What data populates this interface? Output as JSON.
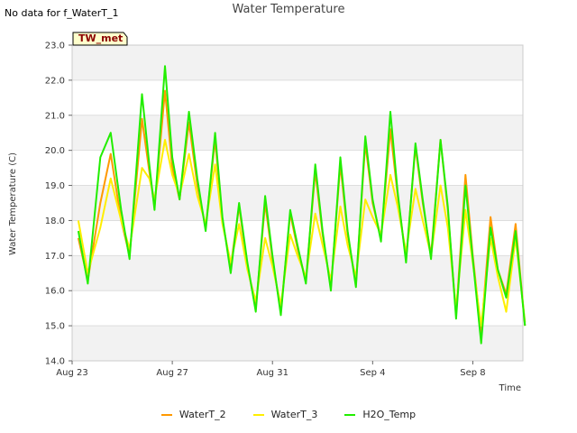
{
  "header": {
    "no_data_note": "No data for f_WaterT_1",
    "title": "Water Temperature"
  },
  "badge": {
    "label": "TW_met"
  },
  "legend": [
    {
      "name": "WaterT_2",
      "color": "#ff9900"
    },
    {
      "name": "WaterT_3",
      "color": "#ffee00"
    },
    {
      "name": "H2O_Temp",
      "color": "#22ee00"
    }
  ],
  "chart_data": {
    "type": "line",
    "title": "Water Temperature",
    "xlabel": "Time",
    "ylabel": "Water Temperature (C)",
    "ylim": [
      14.0,
      23.0
    ],
    "xlim": [
      "2023-08-23",
      "2023-09-10"
    ],
    "yticks": [
      "14.0",
      "15.0",
      "16.0",
      "17.0",
      "18.0",
      "19.0",
      "20.0",
      "21.0",
      "22.0",
      "23.0"
    ],
    "xticks": [
      {
        "label": "Aug 23",
        "date": "2023-08-23"
      },
      {
        "label": "Aug 27",
        "date": "2023-08-27"
      },
      {
        "label": "Aug 31",
        "date": "2023-08-31"
      },
      {
        "label": "Sep 4",
        "date": "2023-09-04"
      },
      {
        "label": "Sep 8",
        "date": "2023-09-08"
      }
    ],
    "grid": true,
    "legend_position": "bottom",
    "series": [
      {
        "name": "WaterT_2",
        "color": "#ff9900",
        "points": [
          [
            "2023-08-23 06:00",
            17.5
          ],
          [
            "2023-08-23 15:00",
            16.3
          ],
          [
            "2023-08-24 03:00",
            18.5
          ],
          [
            "2023-08-24 13:00",
            19.9
          ],
          [
            "2023-08-24 23:00",
            18.0
          ],
          [
            "2023-08-25 07:00",
            17.0
          ],
          [
            "2023-08-25 19:00",
            20.9
          ],
          [
            "2023-08-26 02:00",
            19.4
          ],
          [
            "2023-08-26 07:00",
            18.4
          ],
          [
            "2023-08-26 17:00",
            21.7
          ],
          [
            "2023-08-27 00:00",
            19.5
          ],
          [
            "2023-08-27 07:00",
            18.6
          ],
          [
            "2023-08-27 16:00",
            20.8
          ],
          [
            "2023-08-28 00:00",
            19.0
          ],
          [
            "2023-08-28 08:00",
            17.8
          ],
          [
            "2023-08-28 17:00",
            20.3
          ],
          [
            "2023-08-29 00:00",
            18.0
          ],
          [
            "2023-08-29 08:00",
            16.7
          ],
          [
            "2023-08-29 16:00",
            18.4
          ],
          [
            "2023-08-30 00:00",
            16.7
          ],
          [
            "2023-08-30 08:00",
            15.5
          ],
          [
            "2023-08-30 17:00",
            18.5
          ],
          [
            "2023-08-31 00:00",
            16.9
          ],
          [
            "2023-08-31 08:00",
            15.4
          ],
          [
            "2023-08-31 17:00",
            18.2
          ],
          [
            "2023-09-01 00:00",
            17.2
          ],
          [
            "2023-09-01 08:00",
            16.3
          ],
          [
            "2023-09-01 17:00",
            19.4
          ],
          [
            "2023-09-02 00:00",
            17.6
          ],
          [
            "2023-09-02 08:00",
            16.1
          ],
          [
            "2023-09-02 17:00",
            19.6
          ],
          [
            "2023-09-03 00:00",
            17.6
          ],
          [
            "2023-09-03 08:00",
            16.2
          ],
          [
            "2023-09-03 17:00",
            20.2
          ],
          [
            "2023-09-04 00:00",
            18.5
          ],
          [
            "2023-09-04 08:00",
            17.5
          ],
          [
            "2023-09-04 17:00",
            20.6
          ],
          [
            "2023-09-05 00:00",
            18.7
          ],
          [
            "2023-09-05 08:00",
            16.9
          ],
          [
            "2023-09-05 17:00",
            20.1
          ],
          [
            "2023-09-06 00:00",
            18.5
          ],
          [
            "2023-09-06 08:00",
            17.0
          ],
          [
            "2023-09-06 17:00",
            20.3
          ],
          [
            "2023-09-07 00:00",
            18.3
          ],
          [
            "2023-09-07 08:00",
            15.3
          ],
          [
            "2023-09-07 17:00",
            19.3
          ],
          [
            "2023-09-08 00:00",
            17.0
          ],
          [
            "2023-09-08 08:00",
            14.8
          ],
          [
            "2023-09-08 17:00",
            18.1
          ],
          [
            "2023-09-09 00:00",
            16.6
          ],
          [
            "2023-09-09 08:00",
            15.9
          ],
          [
            "2023-09-09 17:00",
            17.9
          ],
          [
            "2023-09-10 02:00",
            15.0
          ]
        ]
      },
      {
        "name": "WaterT_3",
        "color": "#ffee00",
        "points": [
          [
            "2023-08-23 06:00",
            18.0
          ],
          [
            "2023-08-23 15:00",
            16.5
          ],
          [
            "2023-08-24 03:00",
            17.8
          ],
          [
            "2023-08-24 13:00",
            19.2
          ],
          [
            "2023-08-24 23:00",
            18.0
          ],
          [
            "2023-08-25 07:00",
            17.2
          ],
          [
            "2023-08-25 19:00",
            19.5
          ],
          [
            "2023-08-26 02:00",
            19.2
          ],
          [
            "2023-08-26 07:00",
            18.6
          ],
          [
            "2023-08-26 17:00",
            20.3
          ],
          [
            "2023-08-27 00:00",
            19.3
          ],
          [
            "2023-08-27 07:00",
            18.7
          ],
          [
            "2023-08-27 16:00",
            19.9
          ],
          [
            "2023-08-28 00:00",
            18.7
          ],
          [
            "2023-08-28 08:00",
            17.9
          ],
          [
            "2023-08-28 17:00",
            19.6
          ],
          [
            "2023-08-29 00:00",
            17.9
          ],
          [
            "2023-08-29 08:00",
            16.8
          ],
          [
            "2023-08-29 16:00",
            17.9
          ],
          [
            "2023-08-30 00:00",
            16.6
          ],
          [
            "2023-08-30 08:00",
            15.7
          ],
          [
            "2023-08-30 17:00",
            17.5
          ],
          [
            "2023-08-31 00:00",
            16.7
          ],
          [
            "2023-08-31 08:00",
            15.6
          ],
          [
            "2023-08-31 17:00",
            17.6
          ],
          [
            "2023-09-01 00:00",
            17.0
          ],
          [
            "2023-09-01 08:00",
            16.4
          ],
          [
            "2023-09-01 17:00",
            18.2
          ],
          [
            "2023-09-02 00:00",
            17.3
          ],
          [
            "2023-09-02 08:00",
            16.3
          ],
          [
            "2023-09-02 17:00",
            18.4
          ],
          [
            "2023-09-03 00:00",
            17.3
          ],
          [
            "2023-09-03 08:00",
            16.4
          ],
          [
            "2023-09-03 17:00",
            18.6
          ],
          [
            "2023-09-04 00:00",
            18.1
          ],
          [
            "2023-09-04 08:00",
            17.6
          ],
          [
            "2023-09-04 17:00",
            19.3
          ],
          [
            "2023-09-05 00:00",
            18.4
          ],
          [
            "2023-09-05 08:00",
            17.1
          ],
          [
            "2023-09-05 17:00",
            18.9
          ],
          [
            "2023-09-06 00:00",
            18.0
          ],
          [
            "2023-09-06 08:00",
            17.0
          ],
          [
            "2023-09-06 17:00",
            19.0
          ],
          [
            "2023-09-07 00:00",
            17.8
          ],
          [
            "2023-09-07 08:00",
            15.5
          ],
          [
            "2023-09-07 17:00",
            18.3
          ],
          [
            "2023-09-08 00:00",
            16.8
          ],
          [
            "2023-09-08 08:00",
            15.0
          ],
          [
            "2023-09-08 17:00",
            17.5
          ],
          [
            "2023-09-09 00:00",
            16.4
          ],
          [
            "2023-09-09 08:00",
            15.4
          ],
          [
            "2023-09-09 17:00",
            17.5
          ],
          [
            "2023-09-10 02:00",
            15.1
          ]
        ]
      },
      {
        "name": "H2O_Temp",
        "color": "#22ee00",
        "points": [
          [
            "2023-08-23 06:00",
            17.7
          ],
          [
            "2023-08-23 15:00",
            16.2
          ],
          [
            "2023-08-24 03:00",
            19.8
          ],
          [
            "2023-08-24 13:00",
            20.5
          ],
          [
            "2023-08-24 23:00",
            18.3
          ],
          [
            "2023-08-25 07:00",
            16.9
          ],
          [
            "2023-08-25 19:00",
            21.6
          ],
          [
            "2023-08-26 02:00",
            19.6
          ],
          [
            "2023-08-26 07:00",
            18.3
          ],
          [
            "2023-08-26 17:00",
            22.4
          ],
          [
            "2023-08-27 00:00",
            19.8
          ],
          [
            "2023-08-27 07:00",
            18.6
          ],
          [
            "2023-08-27 16:00",
            21.1
          ],
          [
            "2023-08-28 00:00",
            19.2
          ],
          [
            "2023-08-28 08:00",
            17.7
          ],
          [
            "2023-08-28 17:00",
            20.5
          ],
          [
            "2023-08-29 00:00",
            18.1
          ],
          [
            "2023-08-29 08:00",
            16.5
          ],
          [
            "2023-08-29 16:00",
            18.5
          ],
          [
            "2023-08-30 00:00",
            16.8
          ],
          [
            "2023-08-30 08:00",
            15.4
          ],
          [
            "2023-08-30 17:00",
            18.7
          ],
          [
            "2023-08-31 00:00",
            17.0
          ],
          [
            "2023-08-31 08:00",
            15.3
          ],
          [
            "2023-08-31 17:00",
            18.3
          ],
          [
            "2023-09-01 00:00",
            17.3
          ],
          [
            "2023-09-01 08:00",
            16.2
          ],
          [
            "2023-09-01 17:00",
            19.6
          ],
          [
            "2023-09-02 00:00",
            17.7
          ],
          [
            "2023-09-02 08:00",
            16.0
          ],
          [
            "2023-09-02 17:00",
            19.8
          ],
          [
            "2023-09-03 00:00",
            17.7
          ],
          [
            "2023-09-03 08:00",
            16.1
          ],
          [
            "2023-09-03 17:00",
            20.4
          ],
          [
            "2023-09-04 00:00",
            18.6
          ],
          [
            "2023-09-04 08:00",
            17.4
          ],
          [
            "2023-09-04 17:00",
            21.1
          ],
          [
            "2023-09-05 00:00",
            18.8
          ],
          [
            "2023-09-05 08:00",
            16.8
          ],
          [
            "2023-09-05 17:00",
            20.2
          ],
          [
            "2023-09-06 00:00",
            18.6
          ],
          [
            "2023-09-06 08:00",
            16.9
          ],
          [
            "2023-09-06 17:00",
            20.3
          ],
          [
            "2023-09-07 00:00",
            18.4
          ],
          [
            "2023-09-07 08:00",
            15.2
          ],
          [
            "2023-09-07 17:00",
            19.0
          ],
          [
            "2023-09-08 00:00",
            16.9
          ],
          [
            "2023-09-08 08:00",
            14.5
          ],
          [
            "2023-09-08 17:00",
            17.8
          ],
          [
            "2023-09-09 00:00",
            16.6
          ],
          [
            "2023-09-09 08:00",
            15.8
          ],
          [
            "2023-09-09 17:00",
            17.7
          ],
          [
            "2023-09-10 02:00",
            15.0
          ]
        ]
      }
    ]
  }
}
